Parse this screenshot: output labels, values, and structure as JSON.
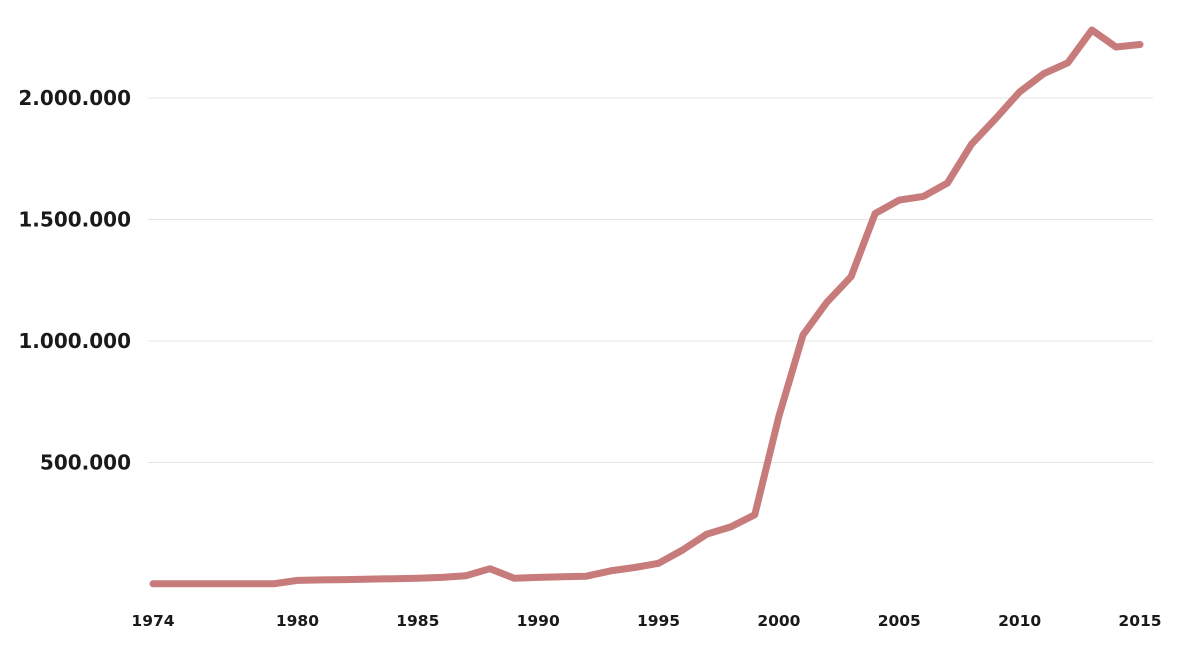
{
  "chart_data": {
    "type": "line",
    "title": "",
    "xlabel": "",
    "ylabel": "",
    "x": [
      1974,
      1975,
      1976,
      1977,
      1978,
      1979,
      1980,
      1981,
      1982,
      1983,
      1984,
      1985,
      1986,
      1987,
      1988,
      1989,
      1990,
      1991,
      1992,
      1993,
      1994,
      1995,
      1996,
      1997,
      1998,
      1999,
      2000,
      2001,
      2002,
      2003,
      2004,
      2005,
      2006,
      2007,
      2008,
      2009,
      2010,
      2011,
      2012,
      2013,
      2014,
      2015
    ],
    "series": [
      {
        "color": "#c77b7b",
        "values": [
          1000,
          1000,
          1000,
          1000,
          1000,
          1000,
          15000,
          17000,
          18000,
          20000,
          22000,
          24000,
          27000,
          34000,
          63000,
          24000,
          27000,
          30000,
          32000,
          54000,
          68000,
          85000,
          140000,
          205000,
          235000,
          285000,
          690000,
          1025000,
          1160000,
          1265000,
          1525000,
          1580000,
          1595000,
          1650000,
          1810000,
          1915000,
          2025000,
          2100000,
          2145000,
          2280000,
          2210000,
          2220000
        ]
      }
    ],
    "ylim": [
      0,
      2300000
    ],
    "y_ticks": [
      {
        "value": 500000,
        "label": "500.000"
      },
      {
        "value": 1000000,
        "label": "1.000.000"
      },
      {
        "value": 1500000,
        "label": "1.500.000"
      },
      {
        "value": 2000000,
        "label": "2.000.000"
      }
    ],
    "x_ticks": [
      1974,
      1980,
      1985,
      1990,
      1995,
      2000,
      2005,
      2010,
      2015
    ],
    "grid": "horizontal",
    "legend": "none"
  }
}
